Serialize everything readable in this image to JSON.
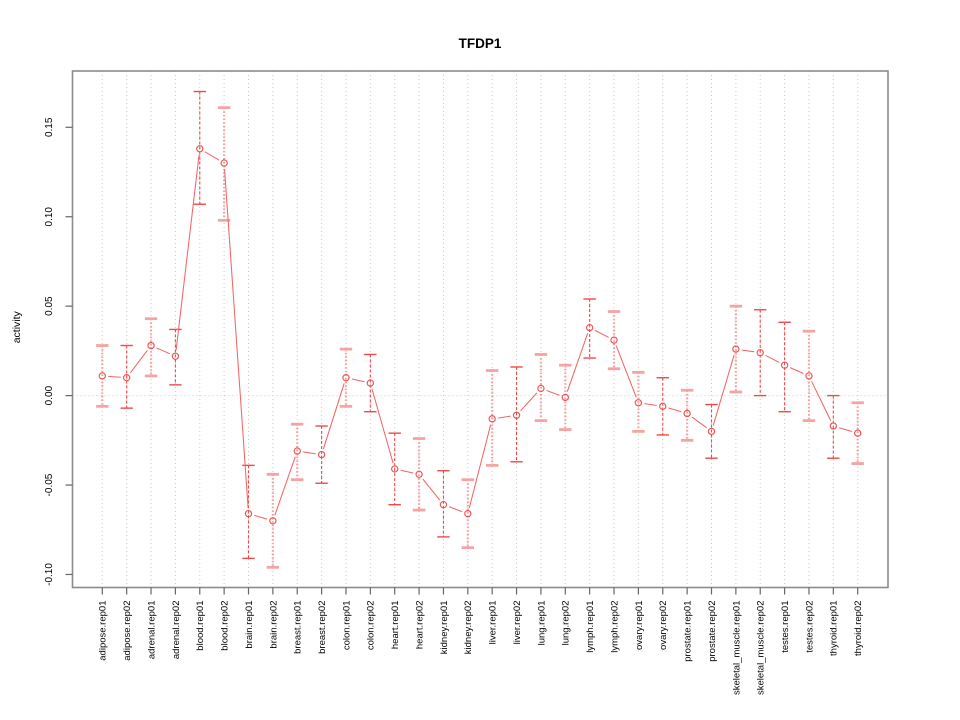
{
  "chart_data": {
    "type": "line",
    "title": "TFDP1",
    "xlabel": "",
    "ylabel": "activity",
    "ylim": [
      -0.105,
      0.175
    ],
    "y_ticks": [
      0.15,
      0.1,
      0.05,
      0.0,
      -0.05,
      -0.1
    ],
    "y_tick_labels": [
      "0.15",
      "0.10",
      "0.05",
      "0.00",
      "-0.05",
      "-0.10"
    ],
    "grid": "vertical dotted gridline at each category; dotted horizontal line at y=0",
    "legend_position": "none",
    "categories": [
      "adipose.rep01",
      "adipose.rep02",
      "adrenal.rep01",
      "adrenal.rep02",
      "blood.rep01",
      "blood.rep02",
      "brain.rep01",
      "brain.rep02",
      "breast.rep01",
      "breast.rep02",
      "colon.rep01",
      "colon.rep02",
      "heart.rep01",
      "heart.rep02",
      "kidney.rep01",
      "kidney.rep02",
      "liver.rep01",
      "liver.rep02",
      "lung.rep01",
      "lung.rep02",
      "lymph.rep01",
      "lymph.rep02",
      "ovary.rep01",
      "ovary.rep02",
      "prostate.rep01",
      "prostate.rep02",
      "skeletal_muscle.rep01",
      "skeletal_muscle.rep02",
      "testes.rep01",
      "testes.rep02",
      "thyroid.rep01",
      "thyroid.rep02"
    ],
    "series": [
      {
        "name": "activity",
        "marker": "open-circle",
        "values": [
          0.011,
          0.01,
          0.028,
          0.022,
          0.138,
          0.13,
          -0.066,
          -0.07,
          -0.031,
          -0.033,
          0.01,
          0.007,
          -0.041,
          -0.044,
          -0.061,
          -0.066,
          -0.013,
          -0.011,
          0.004,
          -0.001,
          0.038,
          0.031,
          -0.004,
          -0.006,
          -0.01,
          -0.02,
          0.026,
          0.024,
          0.017,
          0.011,
          -0.017,
          -0.021
        ],
        "error_low": [
          -0.006,
          -0.007,
          0.011,
          0.006,
          0.107,
          0.098,
          -0.091,
          -0.096,
          -0.047,
          -0.049,
          -0.006,
          -0.009,
          -0.061,
          -0.064,
          -0.079,
          -0.085,
          -0.039,
          -0.037,
          -0.014,
          -0.019,
          0.021,
          0.015,
          -0.02,
          -0.022,
          -0.025,
          -0.035,
          0.002,
          0.0,
          -0.009,
          -0.014,
          -0.035,
          -0.038
        ],
        "error_high": [
          0.028,
          0.028,
          0.043,
          0.037,
          0.17,
          0.161,
          -0.039,
          -0.044,
          -0.016,
          -0.017,
          0.026,
          0.023,
          -0.021,
          -0.024,
          -0.042,
          -0.047,
          0.014,
          0.016,
          0.023,
          0.017,
          0.054,
          0.047,
          0.013,
          0.01,
          0.003,
          -0.005,
          0.05,
          0.048,
          0.041,
          0.036,
          0.0,
          -0.004
        ],
        "bar_styles": [
          "light",
          "dark",
          "light",
          "dark",
          "dark",
          "light",
          "dark",
          "light",
          "light",
          "dark",
          "light",
          "dark",
          "dark",
          "light",
          "dark",
          "light",
          "light",
          "dark",
          "light",
          "light",
          "dark",
          "light",
          "light",
          "dark",
          "light",
          "dark",
          "light",
          "dark",
          "dark",
          "light",
          "dark",
          "light"
        ]
      }
    ]
  },
  "style": {
    "line_color": "#f26666",
    "point_color": "#ee5252",
    "error_bar_light_color": "#f5a3a3",
    "error_bar_dark_color": "#ee4a4a",
    "grid_color": "#c9c9c9",
    "frame_color": "#8c8c8c",
    "tick_color": "#666666",
    "text_color": "#000000",
    "background": "#ffffff"
  }
}
